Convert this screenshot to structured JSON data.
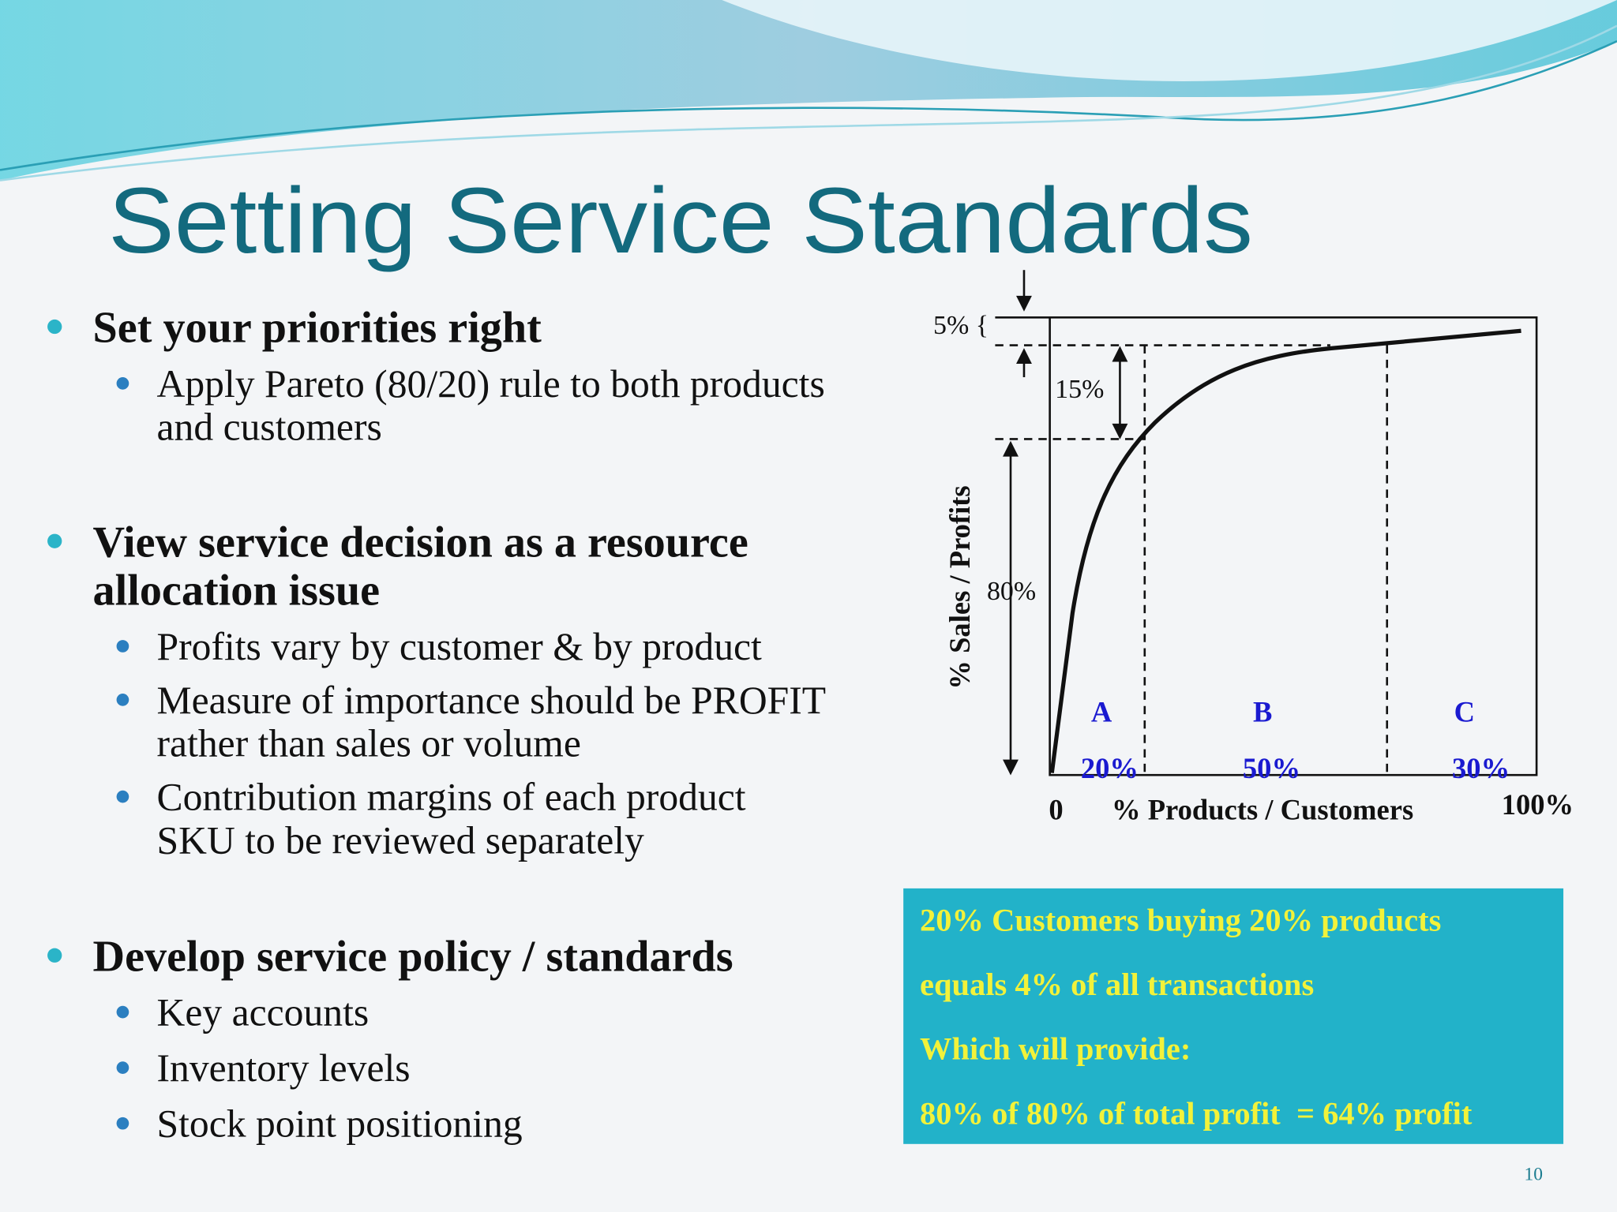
{
  "title": "Setting Service Standards",
  "bullets": [
    {
      "lines": [
        "Set your priorities right"
      ],
      "sub": [
        {
          "lines": [
            "Apply Pareto (80/20) rule to both products",
            "and customers"
          ]
        }
      ]
    },
    {
      "lines": [
        "View service decision as a resource",
        "allocation issue"
      ],
      "sub": [
        {
          "lines": [
            "Profits vary by customer & by product"
          ]
        },
        {
          "lines": [
            "Measure of importance should be PROFIT",
            "rather than sales or volume"
          ]
        },
        {
          "lines": [
            "Contribution margins of each product",
            "SKU to be reviewed separately"
          ]
        }
      ]
    },
    {
      "lines": [
        "Develop service policy / standards"
      ],
      "sub": [
        {
          "lines": [
            "Key accounts"
          ]
        },
        {
          "lines": [
            "Inventory levels"
          ]
        },
        {
          "lines": [
            "Stock point positioning"
          ]
        }
      ]
    }
  ],
  "diagram": {
    "y_label": "% Sales / Profits",
    "x_label": "% Products / Customers",
    "x_start": "0",
    "x_end": "100%",
    "top_gap": "5% {",
    "mid_gap": "15%",
    "main_gap": "80%",
    "classes": [
      {
        "name": "A",
        "share": "20%"
      },
      {
        "name": "B",
        "share": "50%"
      },
      {
        "name": "C",
        "share": "30%"
      }
    ]
  },
  "callout": [
    "20% Customers buying 20% products",
    "equals 4% of all transactions",
    "Which will provide:",
    "80% of 80% of total profit  = 64% profit"
  ],
  "page_number": "10"
}
